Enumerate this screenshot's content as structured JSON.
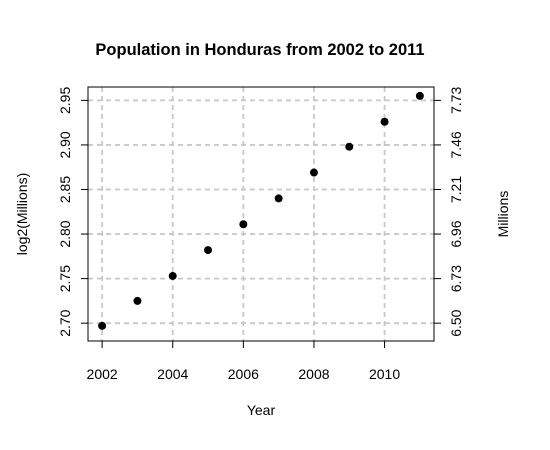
{
  "chart_data": {
    "type": "scatter",
    "title": "Population in Honduras from 2002 to 2011",
    "xlabel": "Year",
    "ylabel": "log2(Millions)",
    "ylabel_right": "Millions",
    "xlim": [
      2001.6,
      2011.4
    ],
    "ylim": [
      2.68,
      2.965
    ],
    "x_ticks": [
      2002,
      2004,
      2006,
      2008,
      2010
    ],
    "x_tick_labels": [
      "2002",
      "2004",
      "2006",
      "2008",
      "2010"
    ],
    "y_ticks": [
      2.7,
      2.75,
      2.8,
      2.85,
      2.9,
      2.95
    ],
    "y_tick_labels": [
      "2.70",
      "2.75",
      "2.80",
      "2.85",
      "2.90",
      "2.95"
    ],
    "y2_ticks": [
      2.7,
      2.75,
      2.8,
      2.85,
      2.9,
      2.95
    ],
    "y2_tick_labels": [
      "6.50",
      "6.73",
      "6.96",
      "7.21",
      "7.46",
      "7.73"
    ],
    "grid": true,
    "x": [
      2002,
      2003,
      2004,
      2005,
      2006,
      2007,
      2008,
      2009,
      2010,
      2011
    ],
    "y": [
      2.697,
      2.725,
      2.753,
      2.782,
      2.811,
      2.84,
      2.869,
      2.898,
      2.926,
      2.955
    ]
  }
}
